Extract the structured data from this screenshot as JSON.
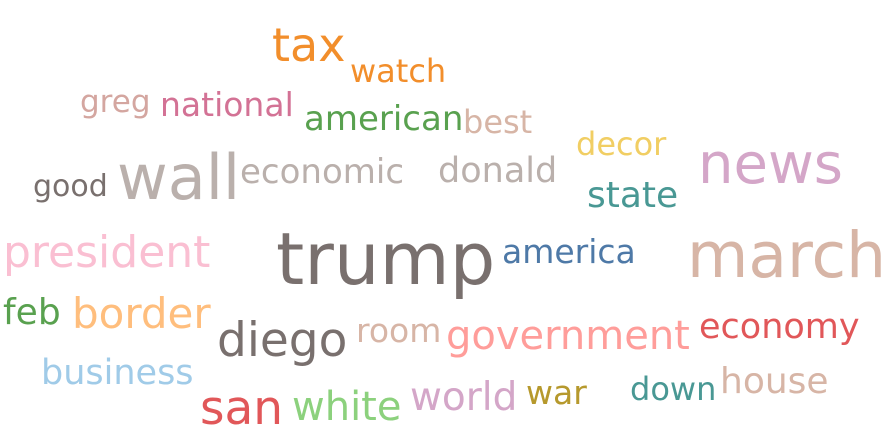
{
  "words": [
    {
      "text": "tax",
      "color": "#F28E2B"
    },
    {
      "text": "watch",
      "color": "#F28E2B"
    },
    {
      "text": "greg",
      "color": "#D4A6A0"
    },
    {
      "text": "national",
      "color": "#D37295"
    },
    {
      "text": "american",
      "color": "#59A14F"
    },
    {
      "text": "best",
      "color": "#D7B5A6"
    },
    {
      "text": "decor",
      "color": "#F1CE63"
    },
    {
      "text": "news",
      "color": "#D4A6C8"
    },
    {
      "text": "good",
      "color": "#79706E"
    },
    {
      "text": "wall",
      "color": "#BAB0AC"
    },
    {
      "text": "economic",
      "color": "#BAB0AC"
    },
    {
      "text": "donald",
      "color": "#BAB0AC"
    },
    {
      "text": "state",
      "color": "#499894"
    },
    {
      "text": "president",
      "color": "#FABFD2"
    },
    {
      "text": "trump",
      "color": "#79706E"
    },
    {
      "text": "america",
      "color": "#4E79A7"
    },
    {
      "text": "march",
      "color": "#D7B5A6"
    },
    {
      "text": "feb",
      "color": "#59A14F"
    },
    {
      "text": "border",
      "color": "#FFBE7D"
    },
    {
      "text": "diego",
      "color": "#79706E"
    },
    {
      "text": "room",
      "color": "#D7B5A6"
    },
    {
      "text": "government",
      "color": "#FF9D9A"
    },
    {
      "text": "economy",
      "color": "#E15759"
    },
    {
      "text": "business",
      "color": "#A0CBE8"
    },
    {
      "text": "san",
      "color": "#E15759"
    },
    {
      "text": "white",
      "color": "#8CD17D"
    },
    {
      "text": "world",
      "color": "#D4A6C8"
    },
    {
      "text": "war",
      "color": "#B6992D"
    },
    {
      "text": "down",
      "color": "#499894"
    },
    {
      "text": "house",
      "color": "#D7B5A6"
    }
  ]
}
